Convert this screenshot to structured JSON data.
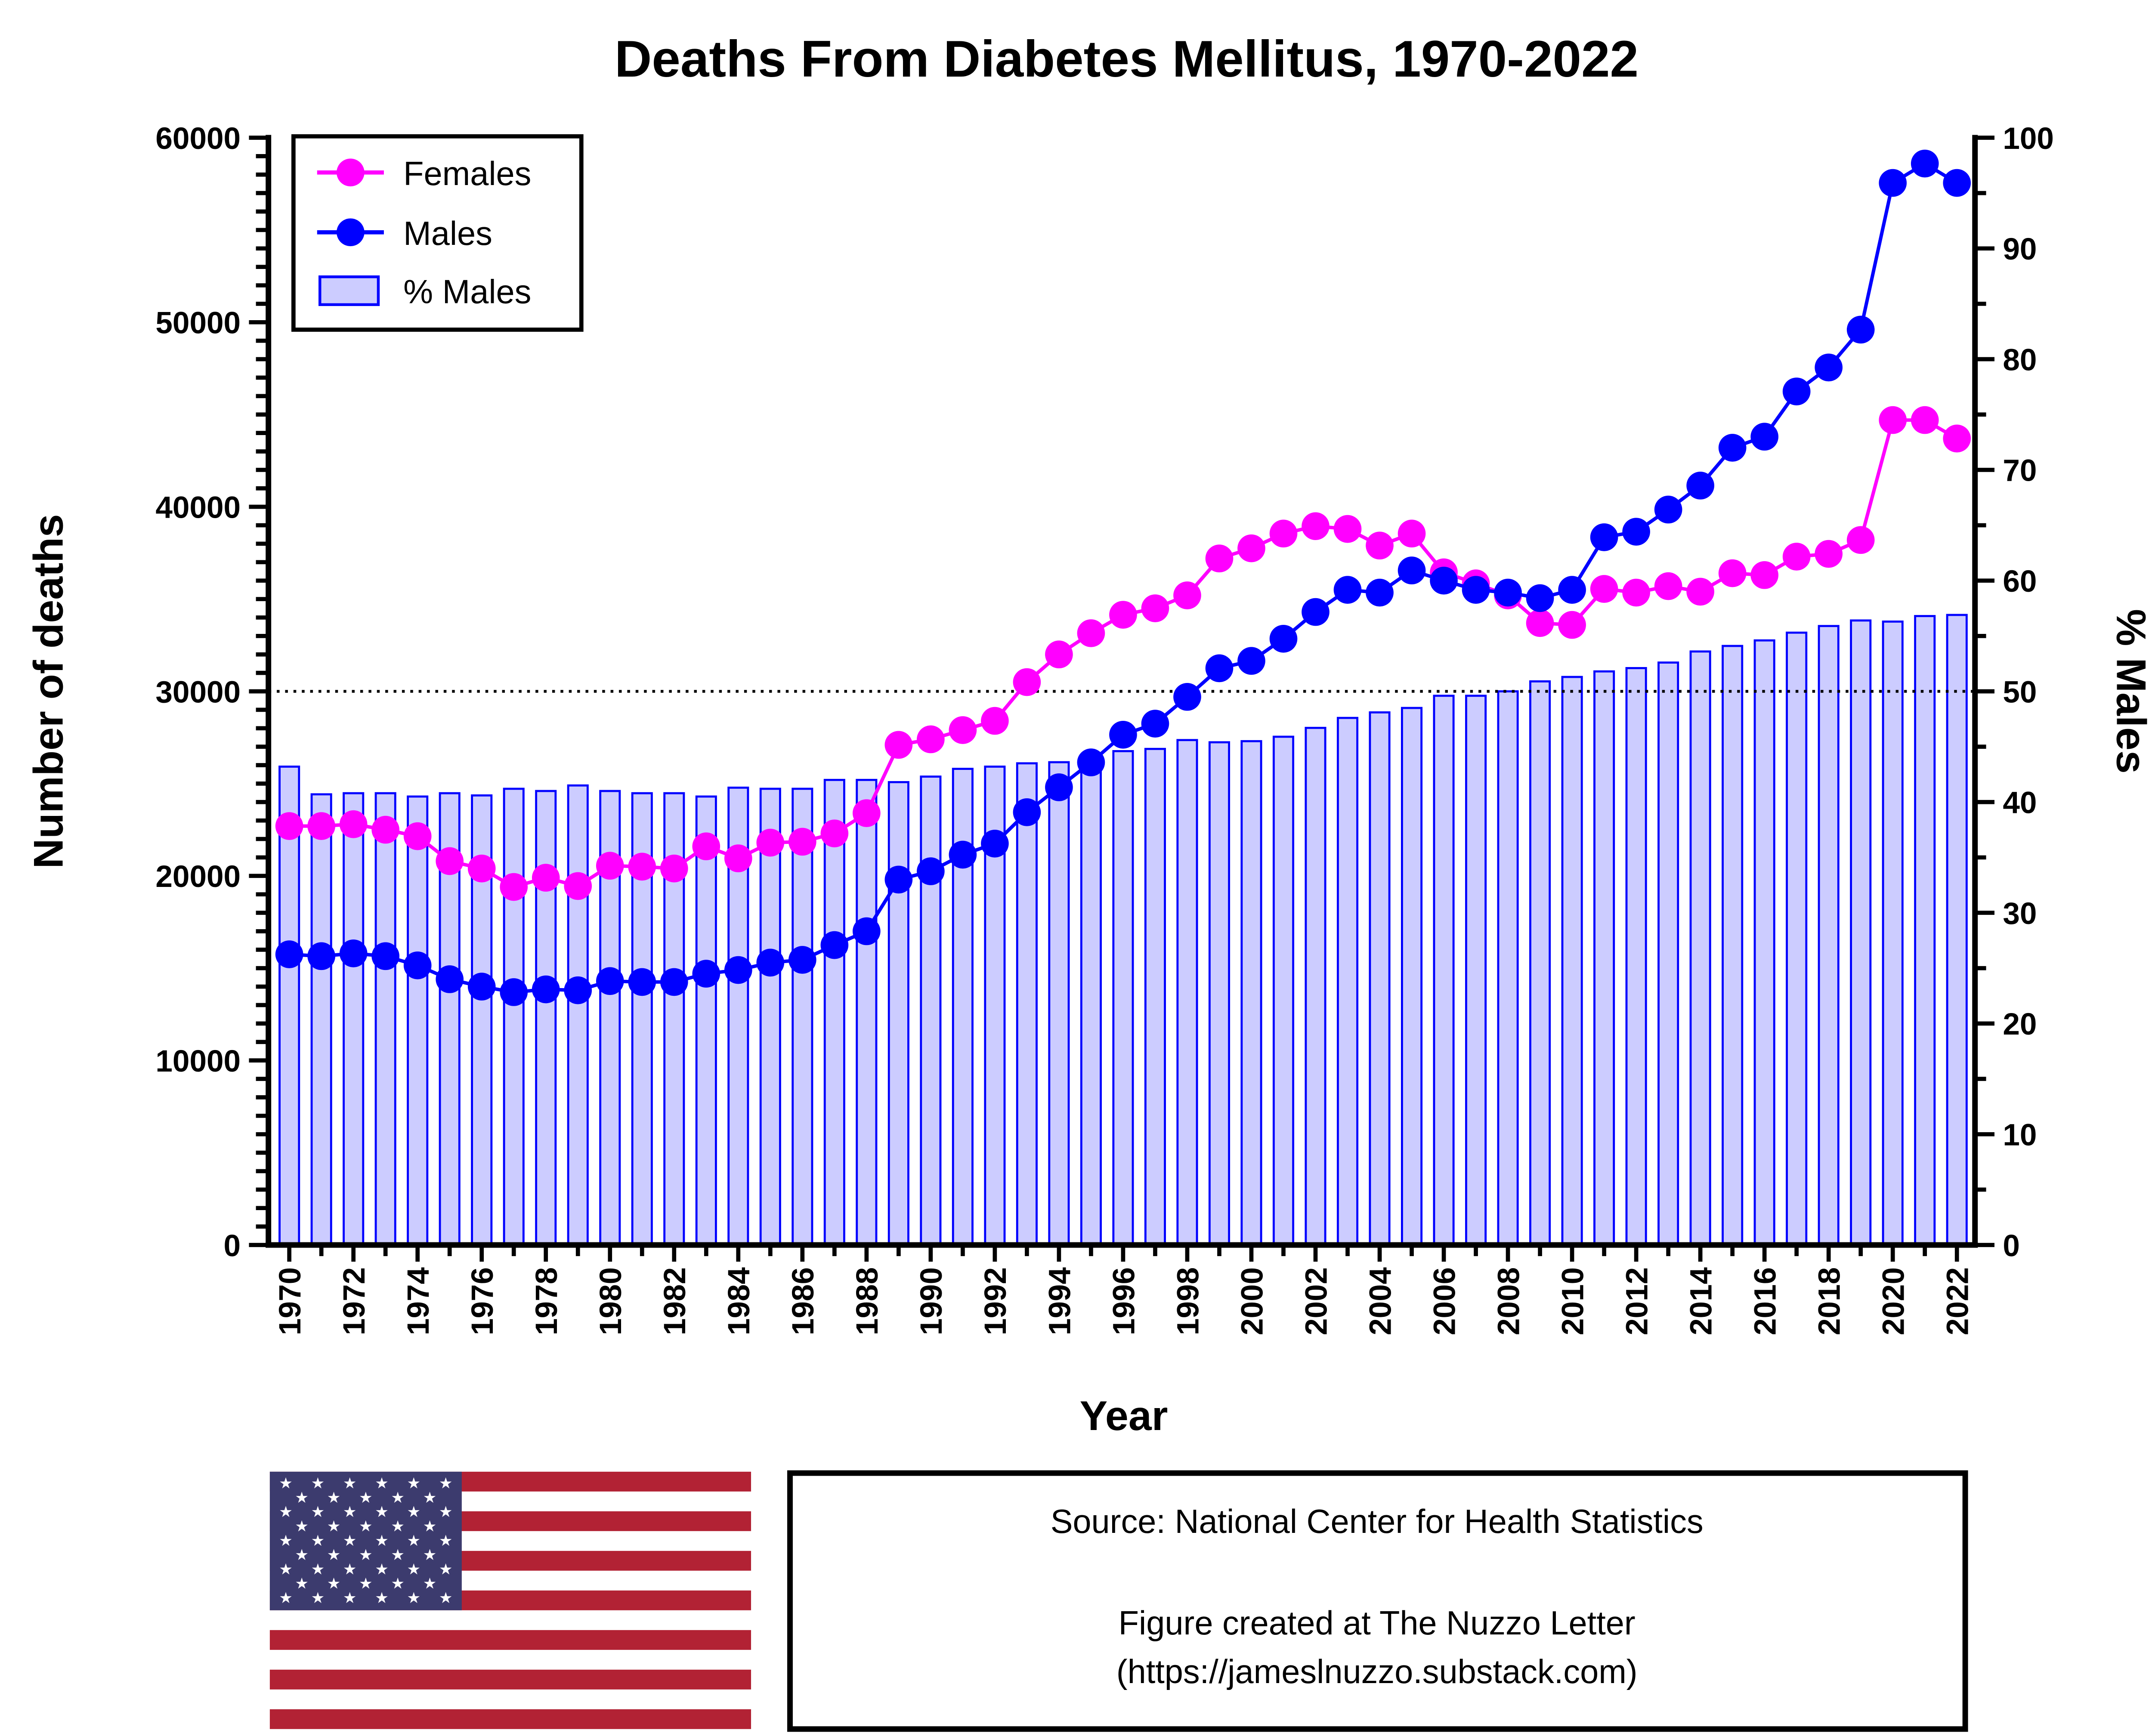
{
  "chart_data": {
    "type": "bar+line",
    "title": "Deaths From Diabetes Mellitus, 1970-2022",
    "xlabel": "Year",
    "ylabel": "Number of deaths",
    "y2label": "% Males",
    "ylim": [
      0,
      60000
    ],
    "y2lim": [
      0,
      100
    ],
    "yticks": [
      0,
      10000,
      20000,
      30000,
      40000,
      50000,
      60000
    ],
    "y2ticks": [
      0,
      10,
      20,
      30,
      40,
      50,
      60,
      70,
      80,
      90,
      100
    ],
    "reference_line": {
      "axis": "y2",
      "value": 50,
      "style": "dotted"
    },
    "legend_position": "top-left",
    "x": [
      1970,
      1971,
      1972,
      1973,
      1974,
      1975,
      1976,
      1977,
      1978,
      1979,
      1980,
      1981,
      1982,
      1983,
      1984,
      1985,
      1986,
      1987,
      1988,
      1989,
      1990,
      1991,
      1992,
      1993,
      1994,
      1995,
      1996,
      1997,
      1998,
      1999,
      2000,
      2001,
      2002,
      2003,
      2004,
      2005,
      2006,
      2007,
      2008,
      2009,
      2010,
      2011,
      2012,
      2013,
      2014,
      2015,
      2016,
      2017,
      2018,
      2019,
      2020,
      2021,
      2022
    ],
    "series": [
      {
        "name": "Females",
        "type": "line",
        "axis": "y",
        "color": "#ff00ff",
        "values": [
          22700,
          22700,
          22800,
          22500,
          22150,
          20800,
          20400,
          19400,
          19900,
          19450,
          20550,
          20500,
          20400,
          21600,
          20950,
          21800,
          21850,
          22300,
          23400,
          27100,
          27400,
          27900,
          28400,
          30500,
          32000,
          33150,
          34150,
          34500,
          35200,
          37200,
          37750,
          38550,
          38950,
          38800,
          37900,
          38550,
          36450,
          35850,
          35200,
          33700,
          33600,
          35550,
          35350,
          35700,
          35400,
          36400,
          36300,
          37300,
          37450,
          38200,
          44700,
          44700,
          43700
        ]
      },
      {
        "name": "Males",
        "type": "line",
        "axis": "y",
        "color": "#0000ff",
        "values": [
          15750,
          15650,
          15800,
          15650,
          15150,
          14400,
          14000,
          13700,
          13850,
          13800,
          14300,
          14250,
          14250,
          14700,
          14900,
          15300,
          15450,
          16250,
          17000,
          19800,
          20250,
          21150,
          21750,
          23450,
          24800,
          26150,
          27650,
          28250,
          29700,
          31250,
          31650,
          32850,
          34300,
          35500,
          35350,
          36550,
          36000,
          35500,
          35350,
          35050,
          35500,
          38350,
          38650,
          39850,
          41150,
          43200,
          43800,
          46250,
          47550,
          49600,
          57550,
          58600,
          57550
        ]
      },
      {
        "name": "% Males",
        "type": "bar",
        "axis": "y2",
        "color": "#ccccff",
        "edgecolor": "#0000ff",
        "values": [
          43.2,
          40.7,
          40.8,
          40.8,
          40.5,
          40.8,
          40.6,
          41.2,
          41.0,
          41.5,
          41.0,
          40.8,
          40.8,
          40.5,
          41.3,
          41.2,
          41.2,
          42.0,
          42.0,
          41.8,
          42.3,
          43.0,
          43.2,
          43.5,
          43.6,
          44.0,
          44.6,
          44.8,
          45.6,
          45.4,
          45.5,
          45.9,
          46.7,
          47.6,
          48.1,
          48.5,
          49.6,
          49.6,
          50.0,
          50.9,
          51.3,
          51.8,
          52.1,
          52.6,
          53.6,
          54.1,
          54.6,
          55.3,
          55.9,
          56.4,
          56.3,
          56.8,
          56.9
        ]
      }
    ]
  },
  "footer": {
    "source": "Source: National Center for Health Statistics",
    "credit_line1": "Figure created at The Nuzzo Letter",
    "credit_line2": "(https://jameslnuzzo.substack.com)"
  },
  "flag": {
    "stripe_red": "#b22234",
    "canton_blue": "#3c3b6e"
  }
}
